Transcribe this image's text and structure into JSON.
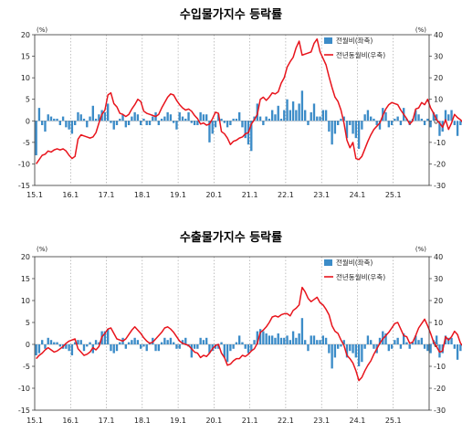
{
  "chart_data": [
    {
      "type": "bar+line",
      "title": "수입물가지수 등락률",
      "left_unit": "(%)",
      "right_unit": "(%)",
      "y_left": {
        "lim": [
          -15,
          20
        ],
        "ticks": [
          20,
          15,
          10,
          5,
          0,
          -5,
          -10,
          -15
        ]
      },
      "y_right": {
        "lim": [
          -30,
          40
        ],
        "ticks": [
          40,
          30,
          20,
          10,
          0,
          -10,
          -20,
          -30
        ]
      },
      "x_ticks": [
        "15.1",
        "16.1",
        "17.1",
        "18.1",
        "19.1",
        "20.1",
        "21.1",
        "22.1",
        "23.1",
        "24.1",
        "25.1"
      ],
      "series": [
        {
          "name": "전월비(좌축)",
          "type": "bar",
          "axis": "left",
          "color": "#3c8cc8",
          "values": [
            -8.0,
            3.0,
            -1.0,
            -2.5,
            1.5,
            1.0,
            0.5,
            0.5,
            -1.0,
            1.0,
            -1.5,
            -2.0,
            -3.0,
            -1.0,
            2.0,
            1.5,
            0.5,
            -1.5,
            1.0,
            3.5,
            0.5,
            1.5,
            2.5,
            2.0,
            4.0,
            -0.5,
            -2.0,
            -1.0,
            0.5,
            1.5,
            -1.5,
            -1.0,
            1.0,
            2.0,
            1.5,
            -1.0,
            0.5,
            -1.0,
            -1.0,
            1.0,
            2.0,
            -1.0,
            0.5,
            1.0,
            2.0,
            1.5,
            -0.5,
            -2.0,
            2.0,
            1.0,
            0.5,
            2.0,
            -0.5,
            -1.0,
            -1.0,
            2.0,
            1.5,
            1.5,
            -5.0,
            -3.0,
            -1.5,
            1.5,
            0.5,
            -0.5,
            -1.5,
            -1.0,
            0.5,
            0.5,
            2.0,
            -1.5,
            -4.0,
            -5.5,
            -7.0,
            1.0,
            4.0,
            1.0,
            -1.0,
            1.0,
            0.5,
            2.5,
            1.5,
            3.5,
            0.5,
            2.5,
            5.0,
            2.5,
            4.5,
            2.5,
            4.0,
            7.0,
            2.5,
            -1.0,
            2.0,
            4.0,
            1.0,
            1.0,
            2.5,
            2.5,
            -2.5,
            -5.5,
            -3.0,
            -1.0,
            0.5,
            1.0,
            -4.0,
            -1.0,
            -3.0,
            -4.0,
            -6.5,
            -2.0,
            1.5,
            2.5,
            1.0,
            0.5,
            -1.0,
            -2.0,
            3.0,
            2.0,
            -1.5,
            -1.0,
            0.5,
            1.0,
            -1.0,
            3.0,
            0.5,
            -1.0,
            0.5,
            2.5,
            1.5,
            0.5,
            -1.0,
            0.5,
            -1.5,
            2.0,
            1.5,
            -3.5,
            -2.5,
            2.5,
            1.5,
            2.5,
            -1.0,
            -3.5,
            -1.0,
            -1.5,
            1.0,
            2.0,
            -2.0,
            0.5,
            2.0,
            2.5
          ]
        },
        {
          "name": "전년동월비(우축)",
          "type": "line",
          "axis": "right",
          "color": "#e8141c",
          "values": [
            -20.0,
            -18.0,
            -16.0,
            -15.5,
            -14.0,
            -14.5,
            -13.5,
            -13.0,
            -13.5,
            -13.0,
            -14.0,
            -16.0,
            -17.5,
            -16.5,
            -8.5,
            -6.5,
            -7.0,
            -7.5,
            -8.0,
            -7.5,
            -5.5,
            -1.0,
            3.0,
            5.0,
            12.0,
            13.0,
            8.0,
            6.5,
            3.5,
            3.0,
            2.0,
            3.0,
            5.5,
            7.5,
            10.0,
            9.0,
            4.5,
            3.5,
            3.0,
            2.5,
            2.0,
            3.0,
            6.0,
            8.5,
            11.0,
            12.5,
            12.0,
            9.5,
            7.5,
            6.0,
            5.0,
            5.5,
            4.5,
            2.5,
            1.0,
            -1.5,
            -1.0,
            -2.0,
            -1.5,
            1.0,
            4.0,
            3.5,
            -5.0,
            -6.0,
            -8.0,
            -11.0,
            -9.5,
            -9.0,
            -8.0,
            -7.5,
            -6.0,
            -5.5,
            -1.5,
            0.5,
            3.0,
            10.0,
            11.0,
            9.5,
            11.0,
            13.0,
            12.5,
            13.5,
            17.5,
            20.0,
            25.0,
            27.5,
            29.5,
            34.0,
            37.0,
            30.5,
            31.0,
            31.5,
            32.0,
            36.0,
            38.0,
            32.0,
            29.0,
            26.0,
            20.5,
            15.5,
            11.0,
            9.0,
            5.0,
            -1.0,
            -9.0,
            -12.5,
            -10.0,
            -17.5,
            -18.0,
            -16.5,
            -13.0,
            -9.5,
            -6.5,
            -4.0,
            -2.5,
            -1.0,
            2.5,
            5.5,
            7.5,
            8.5,
            8.0,
            7.5,
            5.0,
            3.0,
            1.0,
            -1.5,
            0.0,
            5.5,
            6.0,
            8.5,
            7.5,
            10.0,
            6.0,
            3.5,
            0.5,
            -1.0,
            -3.0,
            0.5,
            -4.0,
            -1.0,
            3.0,
            1.5,
            0.5,
            -1.0,
            1.0,
            3.5,
            1.5,
            -1.0,
            0.0,
            0.5
          ]
        }
      ],
      "legend": "top-right",
      "grid_x": "dotted vertical at year ticks"
    },
    {
      "type": "bar+line",
      "title": "수출물가지수 등락률",
      "left_unit": "(%)",
      "right_unit": "(%)",
      "y_left": {
        "lim": [
          -15,
          20
        ],
        "ticks": [
          20,
          15,
          10,
          5,
          0,
          -5,
          -10,
          -15
        ]
      },
      "y_right": {
        "lim": [
          -30,
          40
        ],
        "ticks": [
          40,
          30,
          20,
          10,
          0,
          -10,
          -20,
          -30
        ]
      },
      "x_ticks": [
        "15.1",
        "16.1",
        "17.1",
        "18.1",
        "19.1",
        "20.1",
        "21.1",
        "22.1",
        "23.1",
        "24.1",
        "25.1"
      ],
      "series": [
        {
          "name": "전월비(좌축)",
          "type": "bar",
          "axis": "left",
          "color": "#3c8cc8",
          "values": [
            -2.5,
            -2.0,
            1.0,
            -1.0,
            1.5,
            1.0,
            0.5,
            0.5,
            -0.5,
            -1.0,
            -1.0,
            -1.5,
            -2.5,
            0.5,
            1.0,
            1.0,
            -1.5,
            -0.5,
            0.5,
            -2.0,
            1.0,
            0.5,
            3.0,
            3.0,
            3.5,
            -1.5,
            -2.0,
            -1.5,
            0.5,
            1.5,
            -1.0,
            0.5,
            1.0,
            1.5,
            1.0,
            -1.0,
            -0.5,
            -1.5,
            0.5,
            1.5,
            -1.5,
            -1.5,
            0.5,
            1.5,
            1.0,
            1.5,
            0.5,
            -1.0,
            -1.0,
            1.0,
            1.5,
            -0.5,
            -3.0,
            -1.0,
            -1.0,
            1.5,
            1.0,
            1.5,
            -2.0,
            -1.5,
            -1.0,
            -1.0,
            0.5,
            -3.0,
            -4.0,
            -1.5,
            -1.0,
            0.5,
            2.0,
            0.5,
            -1.0,
            -2.0,
            -1.5,
            1.0,
            3.0,
            3.5,
            3.0,
            2.5,
            2.0,
            2.0,
            1.5,
            2.5,
            1.5,
            1.5,
            2.0,
            1.0,
            3.0,
            1.5,
            2.5,
            6.0,
            1.0,
            -1.5,
            2.0,
            2.0,
            1.0,
            1.0,
            2.0,
            1.5,
            -2.0,
            -5.5,
            -3.0,
            -1.0,
            -0.5,
            1.0,
            -3.0,
            -1.5,
            -2.0,
            -3.0,
            -5.0,
            -4.0,
            -1.0,
            2.0,
            1.0,
            -1.0,
            -2.0,
            1.5,
            3.0,
            2.5,
            -1.5,
            -1.0,
            1.0,
            1.5,
            -1.0,
            2.5,
            0.5,
            -1.0,
            0.5,
            2.0,
            1.0,
            1.5,
            -1.0,
            -1.5,
            -2.0,
            1.0,
            2.0,
            -3.0,
            -2.0,
            2.0,
            1.5,
            1.5,
            -1.0,
            -3.5,
            -1.5,
            -1.5,
            0.5,
            1.5,
            -1.5,
            0.5,
            1.0,
            4.0
          ]
        },
        {
          "name": "전년동월비(우축)",
          "type": "line",
          "axis": "right",
          "color": "#e8141c",
          "values": [
            -6.5,
            -5.0,
            -4.0,
            -2.5,
            -1.5,
            -2.5,
            -3.5,
            -3.0,
            -2.0,
            -1.0,
            0.5,
            1.5,
            2.0,
            2.5,
            -2.0,
            -3.5,
            -5.0,
            -4.5,
            -3.5,
            -1.5,
            -2.5,
            -1.0,
            3.5,
            5.0,
            7.0,
            7.5,
            5.0,
            2.5,
            2.0,
            1.5,
            2.5,
            4.5,
            6.5,
            8.0,
            6.5,
            5.0,
            3.0,
            1.5,
            0.5,
            1.0,
            2.5,
            4.0,
            5.5,
            7.5,
            8.0,
            7.0,
            5.5,
            3.5,
            1.5,
            0.5,
            0.0,
            -0.5,
            -2.0,
            -3.5,
            -4.0,
            -6.0,
            -5.0,
            -5.5,
            -4.0,
            -2.0,
            -0.5,
            0.0,
            -4.0,
            -6.0,
            -9.5,
            -9.0,
            -7.5,
            -6.5,
            -6.5,
            -5.0,
            -5.5,
            -4.5,
            -3.0,
            -2.0,
            0.5,
            5.5,
            6.5,
            8.0,
            10.0,
            12.5,
            13.0,
            12.5,
            13.5,
            14.0,
            14.0,
            13.0,
            15.5,
            16.5,
            18.0,
            26.0,
            24.0,
            21.0,
            19.5,
            20.5,
            21.5,
            19.0,
            18.0,
            16.0,
            13.5,
            8.5,
            6.0,
            5.0,
            2.0,
            -0.5,
            -5.0,
            -6.5,
            -8.5,
            -12.0,
            -16.5,
            -15.0,
            -12.0,
            -9.5,
            -7.5,
            -4.5,
            -2.0,
            0.5,
            2.5,
            4.0,
            5.5,
            7.5,
            9.5,
            10.0,
            7.0,
            4.0,
            3.5,
            0.5,
            1.0,
            4.0,
            7.5,
            9.5,
            11.5,
            8.5,
            5.0,
            1.0,
            -1.0,
            -3.5,
            -3.0,
            3.5,
            2.0,
            3.5,
            6.0,
            4.5,
            0.5,
            -1.0,
            -3.5,
            -1.0,
            -3.0,
            -1.5,
            1.5,
            6.5
          ]
        }
      ],
      "legend": "top-right",
      "grid_x": "dotted vertical at year ticks"
    }
  ]
}
